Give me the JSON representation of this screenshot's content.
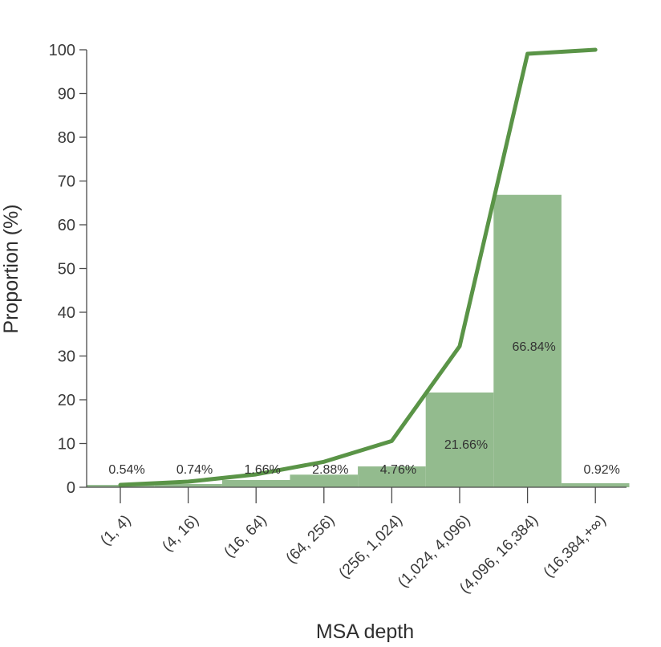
{
  "chart_data": {
    "type": "bar",
    "xlabel": "MSA depth",
    "ylabel": "Proportion (%)",
    "ylim": [
      0,
      100
    ],
    "yticks": [
      0,
      10,
      20,
      30,
      40,
      50,
      60,
      70,
      80,
      90,
      100
    ],
    "categories": [
      "(1, 4)",
      "(4, 16)",
      "(16, 64)",
      "(64, 256)",
      "(256, 1,024)",
      "(1,024, 4,096)",
      "(4,096, 16,384)",
      "(16,384,+∞)"
    ],
    "series": [
      {
        "type": "bar",
        "values": [
          0.54,
          0.74,
          1.66,
          2.88,
          4.76,
          21.66,
          66.84,
          0.92
        ],
        "labels": [
          "0.54%",
          "0.74%",
          "1.66%",
          "2.88%",
          "4.76%",
          "21.66%",
          "66.84%",
          "0.92%"
        ],
        "color": "#93bb8e"
      },
      {
        "type": "line",
        "values": [
          0.54,
          1.28,
          2.94,
          5.82,
          10.58,
          32.24,
          99.08,
          100.0
        ],
        "color": "#5a9447"
      }
    ],
    "grid": false,
    "legend": "none"
  }
}
